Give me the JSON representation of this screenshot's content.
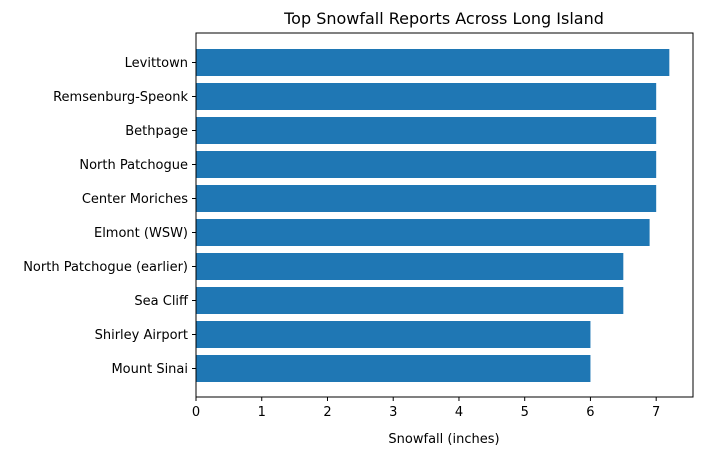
{
  "chart_data": {
    "type": "bar",
    "orientation": "horizontal",
    "title": "Top Snowfall Reports Across Long Island",
    "xlabel": "Snowfall (inches)",
    "ylabel": "",
    "xlim": [
      0,
      7.56
    ],
    "xticks": [
      0,
      1,
      2,
      3,
      4,
      5,
      6,
      7
    ],
    "grid": false,
    "categories": [
      "Levittown",
      "Remsenburg-Speonk",
      "Bethpage",
      "North Patchogue",
      "Center Moriches",
      "Elmont (WSW)",
      "North Patchogue (earlier)",
      "Sea Cliff",
      "Shirley Airport",
      "Mount Sinai"
    ],
    "values": [
      7.2,
      7.0,
      7.0,
      7.0,
      7.0,
      6.9,
      6.5,
      6.5,
      6.0,
      6.0
    ],
    "bar_color": "#1f77b4"
  }
}
